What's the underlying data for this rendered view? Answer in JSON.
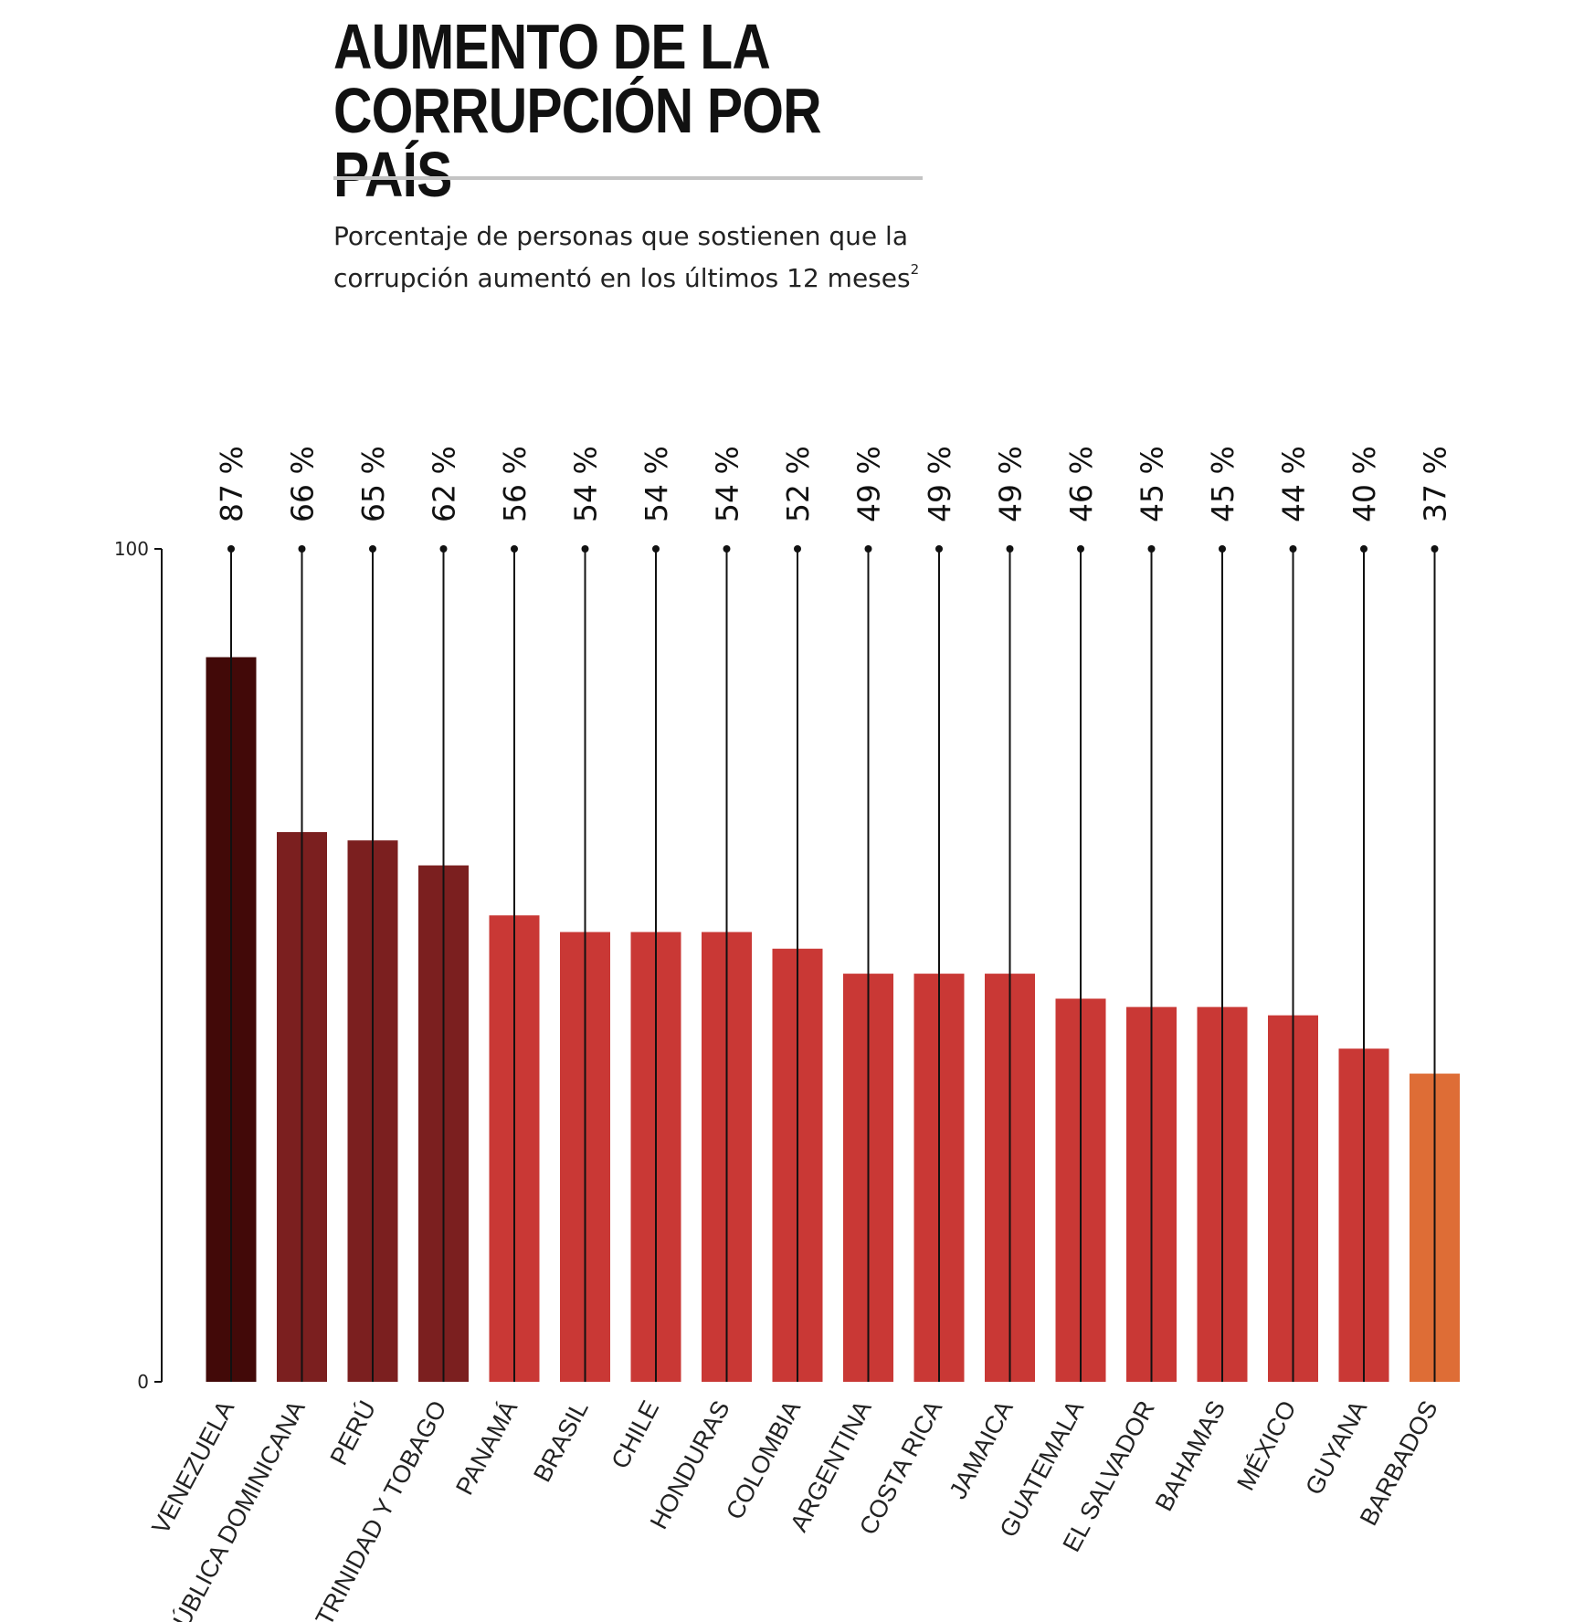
{
  "header": {
    "title_line1": "AUMENTO DE LA",
    "title_line2": "CORRUPCIÓN POR PAÍS",
    "subtitle_line1": "Porcentaje de personas que sostienen que la",
    "subtitle_line2": "corrupción aumentó en los últimos 12 meses",
    "footnote_mark": "2"
  },
  "chart_data": {
    "type": "bar",
    "title": "AUMENTO DE LA CORRUPCIÓN POR PAÍS",
    "subtitle": "Porcentaje de personas que sostienen que la corrupción aumentó en los últimos 12 meses",
    "xlabel": "",
    "ylabel": "",
    "ylim": [
      0,
      100
    ],
    "yticks": [
      0,
      100
    ],
    "grid": false,
    "value_suffix": " %",
    "categories": [
      "VENEZUELA",
      "REPÚBLICA DOMINICANA",
      "PERÚ",
      "TRINIDAD Y TOBAGO",
      "PANAMÁ",
      "BRASIL",
      "CHILE",
      "HONDURAS",
      "COLOMBIA",
      "ARGENTINA",
      "COSTA RICA",
      "JAMAICA",
      "GUATEMALA",
      "EL SALVADOR",
      "BAHAMAS",
      "MÉXICO",
      "GUYANA",
      "BARBADOS"
    ],
    "values": [
      87,
      66,
      65,
      62,
      56,
      54,
      54,
      54,
      52,
      49,
      49,
      49,
      46,
      45,
      45,
      44,
      40,
      37
    ],
    "colors": [
      "#420908",
      "#7b1f1f",
      "#7b1f1f",
      "#7b1f1f",
      "#c93835",
      "#c93835",
      "#c93835",
      "#c93835",
      "#c93835",
      "#c93835",
      "#c93835",
      "#c93835",
      "#c93835",
      "#c93835",
      "#c93835",
      "#c93835",
      "#c93835",
      "#de6d36"
    ]
  }
}
